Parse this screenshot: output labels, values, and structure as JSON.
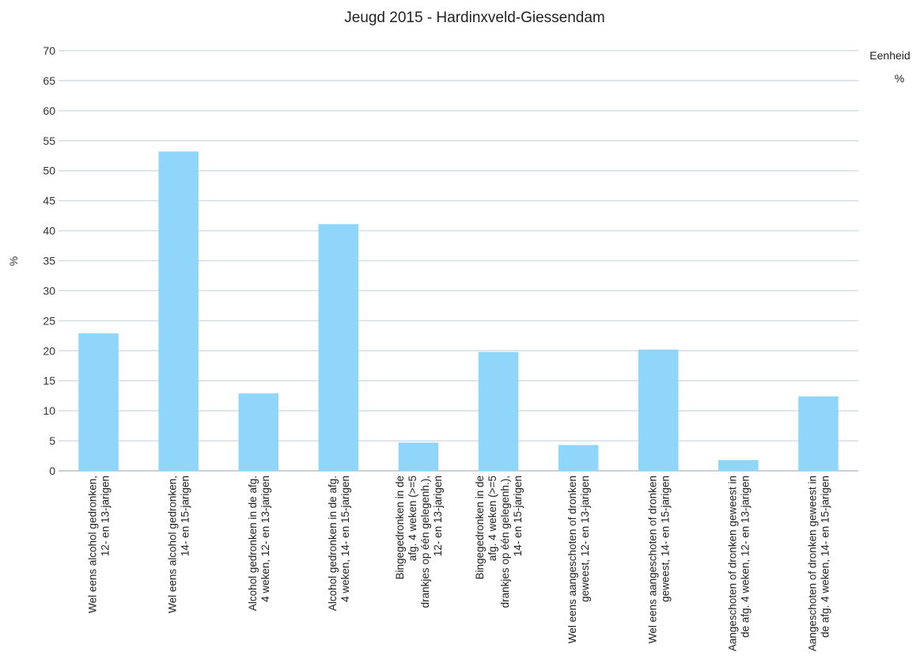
{
  "chart_data": {
    "type": "bar",
    "title": "Jeugd 2015 - Hardinxveld-Giessendam",
    "ylabel": "%",
    "xlabel": "",
    "ylim": [
      0,
      70
    ],
    "yticks": [
      0,
      5,
      10,
      15,
      20,
      25,
      30,
      35,
      40,
      45,
      50,
      55,
      60,
      65,
      70
    ],
    "grid": true,
    "bar_color": "#90d6fa",
    "legend": {
      "title": "Eenheid",
      "label": "%",
      "placement": "top-right"
    },
    "categories": [
      [
        "Wel eens alcohol gedronken,",
        "12- en 13-jarigen"
      ],
      [
        "Wel eens alcohol gedronken,",
        "14- en 15-jarigen"
      ],
      [
        "Alcohol gedronken in de afg.",
        "4 weken, 12- en 13-jarigen"
      ],
      [
        "Alcohol gedronken in de afg.",
        "4 weken, 14- en 15-jarigen"
      ],
      [
        "Bingegedronken in de",
        "afg. 4 weken (>=5",
        "drankjes op één gelegenh.),",
        "12- en 13-jarigen"
      ],
      [
        "Bingegedronken in de",
        "afg. 4 weken (>=5",
        "drankjes op één gelegenh.),",
        "14- en 15-jarigen"
      ],
      [
        "Wel eens aangeschoten of dronken",
        "geweest, 12- en 13-jarigen"
      ],
      [
        "Wel eens aangeschoten of dronken",
        "geweest, 14- en 15-jarigen"
      ],
      [
        "Aangeschoten of dronken geweest in",
        "de afg. 4 weken, 12- en 13-jarigen"
      ],
      [
        "Aangeschoten of dronken geweest in",
        "de afg. 4 weken, 14- en 15-jarigen"
      ]
    ],
    "values": [
      22.9,
      53.2,
      12.9,
      41.1,
      4.7,
      19.8,
      4.3,
      20.2,
      1.8,
      12.4
    ]
  }
}
